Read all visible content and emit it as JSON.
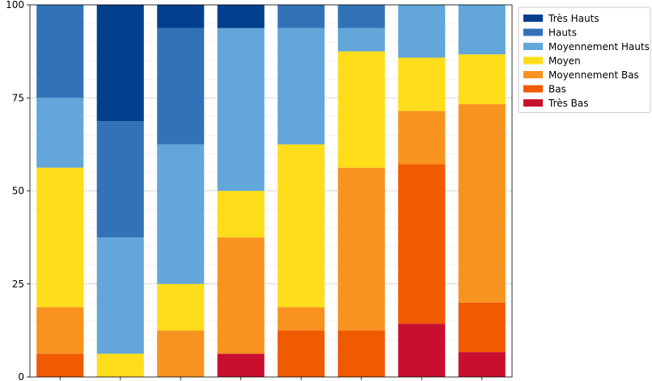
{
  "chart_data": {
    "type": "bar",
    "stacked": true,
    "categories": [
      "",
      "",
      "",
      "",
      "",
      "",
      "",
      ""
    ],
    "ylim": [
      0,
      100
    ],
    "yticks": [
      0,
      25,
      50,
      75,
      100
    ],
    "ytick_labels": [
      "0",
      "25",
      "50",
      "75",
      "100"
    ],
    "grid": "y-dotted",
    "legend_position": "right-outside-top",
    "series": [
      {
        "name": "Très Bas",
        "color": "#c8102e",
        "values": [
          0,
          0,
          0,
          6.25,
          0,
          0,
          14.3,
          6.7
        ]
      },
      {
        "name": "Bas",
        "color": "#f05a00",
        "values": [
          6.25,
          0,
          0,
          0,
          12.5,
          12.5,
          42.9,
          13.3
        ]
      },
      {
        "name": "Moyennement Bas",
        "color": "#f7931e",
        "values": [
          12.5,
          0,
          12.5,
          31.25,
          6.25,
          43.75,
          14.3,
          53.3
        ]
      },
      {
        "name": "Moyen",
        "color": "#ffdd1a",
        "values": [
          37.5,
          6.25,
          12.5,
          12.5,
          43.75,
          31.25,
          14.3,
          13.4
        ]
      },
      {
        "name": "Moyennement Hauts",
        "color": "#62a6da",
        "values": [
          18.75,
          31.25,
          37.5,
          43.75,
          31.25,
          6.25,
          14.2,
          13.3
        ]
      },
      {
        "name": "Hauts",
        "color": "#3273b8",
        "values": [
          25,
          31.25,
          31.25,
          0,
          6.25,
          6.25,
          0,
          0
        ]
      },
      {
        "name": "Très Hauts",
        "color": "#023f8c",
        "values": [
          0,
          31.25,
          6.25,
          6.25,
          0,
          0,
          0,
          0
        ]
      }
    ],
    "legend_order": [
      "Très Hauts",
      "Hauts",
      "Moyennement Hauts",
      "Moyen",
      "Moyennement Bas",
      "Bas",
      "Très Bas"
    ]
  }
}
